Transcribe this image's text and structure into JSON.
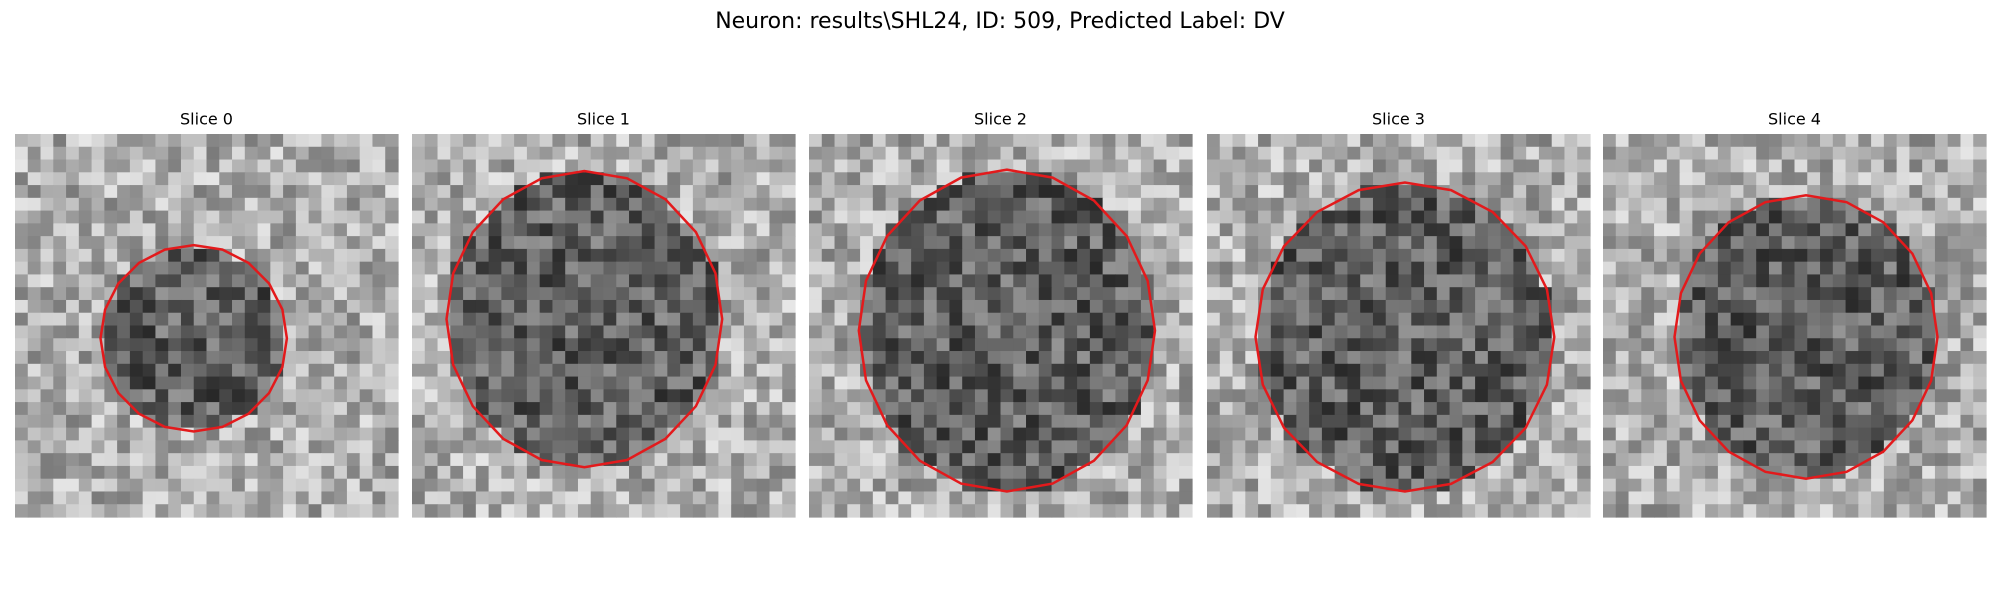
{
  "title": "Neuron: results\\SHL24, ID: 509, Predicted Label: DV",
  "panels": [
    {
      "title": "Slice 0"
    },
    {
      "title": "Slice 1"
    },
    {
      "title": "Slice 2"
    },
    {
      "title": "Slice 3"
    },
    {
      "title": "Slice 4"
    }
  ]
}
